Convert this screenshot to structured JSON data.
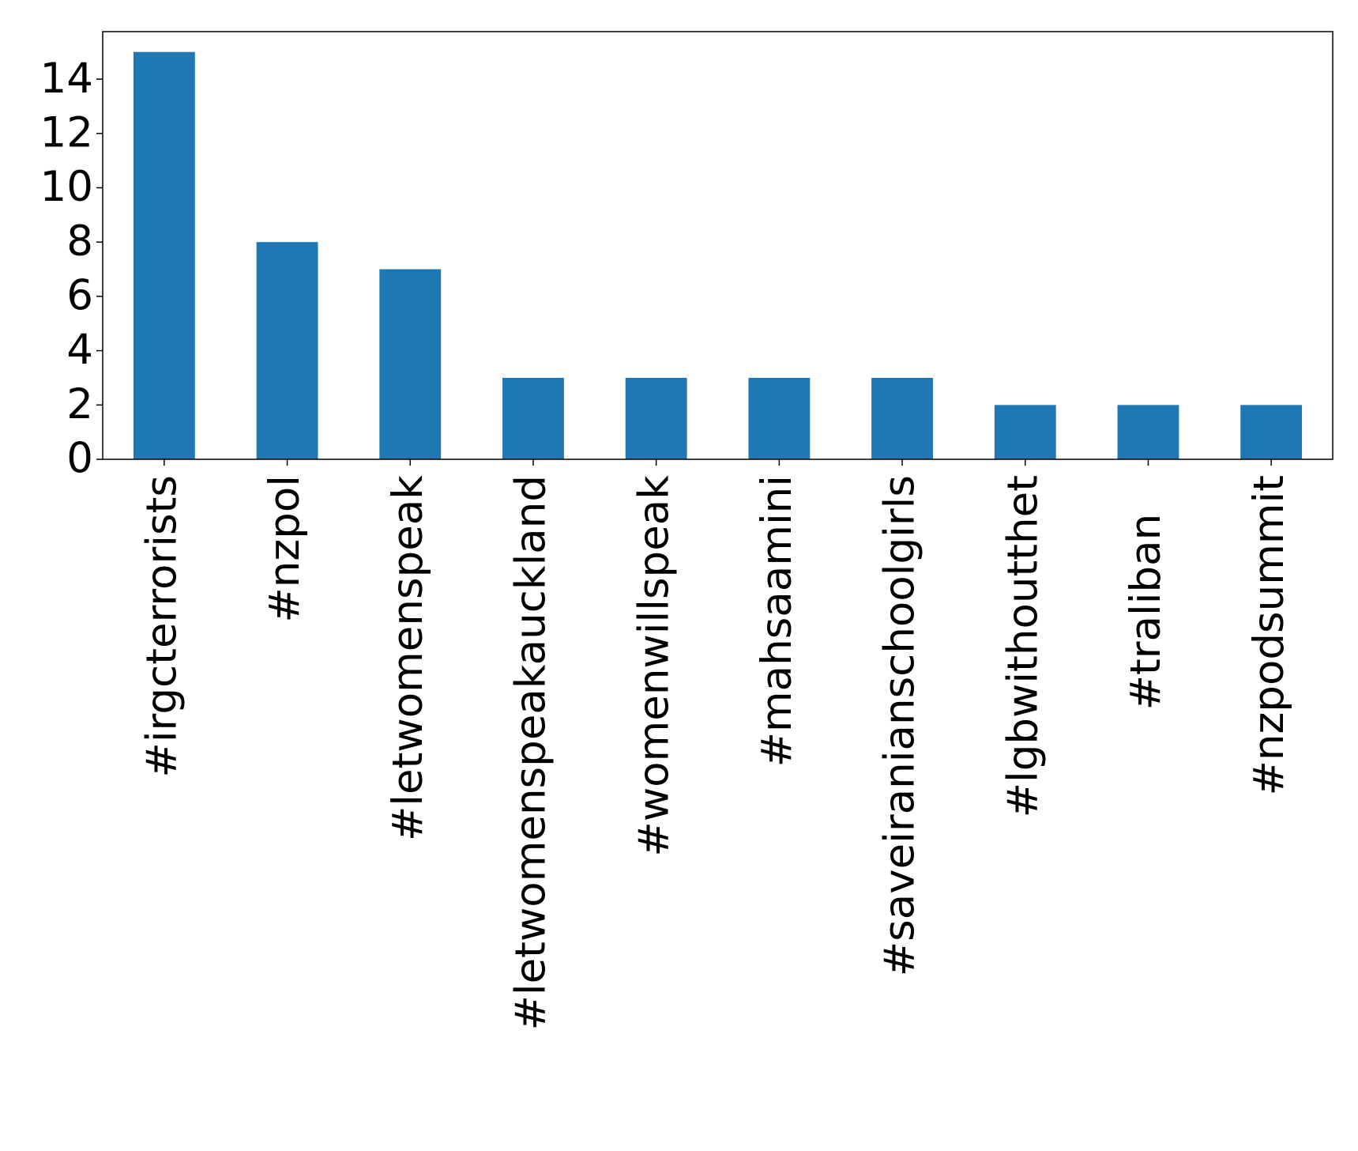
{
  "chart_data": {
    "type": "bar",
    "categories": [
      "#irgcterrorists",
      "#nzpol",
      "#letwomenspeak",
      "#letwomenspeakauckland",
      "#womenwillspeak",
      "#mahsaamini",
      "#saveiranianschoolgirls",
      "#lgbwithoutthet",
      "#tralibanﾠ",
      "#nzpodsummit"
    ],
    "values": [
      15,
      8,
      7,
      3,
      3,
      3,
      3,
      2,
      2,
      2
    ],
    "color": "#1f77b4",
    "ylim": [
      0,
      15.75
    ],
    "yticks": [
      0,
      2,
      4,
      6,
      8,
      10,
      12,
      14
    ],
    "grid": false
  }
}
